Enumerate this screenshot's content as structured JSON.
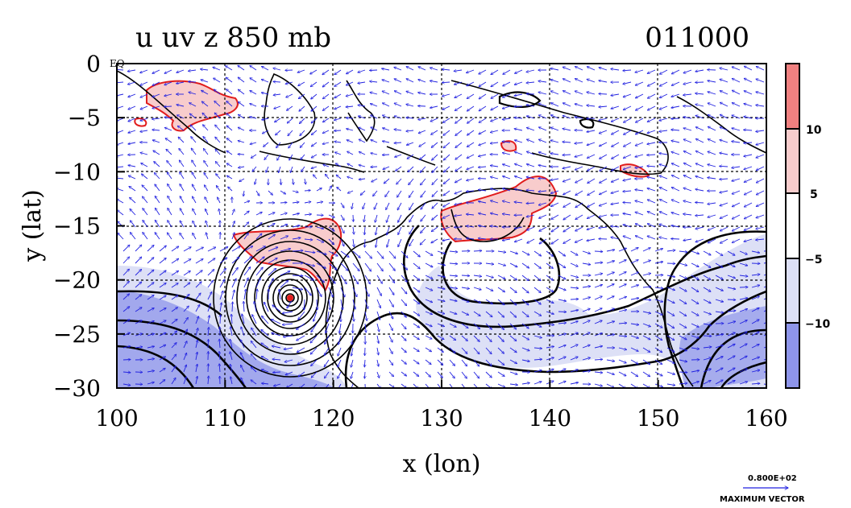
{
  "title": {
    "left": "u uv z 850 mb",
    "right": "011000"
  },
  "axes": {
    "xlabel": "x (lon)",
    "ylabel": "y (lat)",
    "xlim": [
      100,
      160
    ],
    "ylim": [
      -30,
      0
    ],
    "xticks": [
      {
        "value": 100,
        "label": "100"
      },
      {
        "value": 110,
        "label": "110"
      },
      {
        "value": 120,
        "label": "120"
      },
      {
        "value": 130,
        "label": "130"
      },
      {
        "value": 140,
        "label": "140"
      },
      {
        "value": 150,
        "label": "150"
      },
      {
        "value": 160,
        "label": "160"
      }
    ],
    "yticks": [
      {
        "value": 0,
        "label": "0"
      },
      {
        "value": -5,
        "label": "−5"
      },
      {
        "value": -10,
        "label": "−10"
      },
      {
        "value": -15,
        "label": "−15"
      },
      {
        "value": -20,
        "label": "−20"
      },
      {
        "value": -25,
        "label": "−25"
      },
      {
        "value": -30,
        "label": "−30"
      }
    ],
    "eq_label": "EQ",
    "grid": true
  },
  "colorbar": {
    "labels": [
      "10",
      "5",
      "−5",
      "−10"
    ],
    "bins": [
      {
        "name": "gt-10",
        "color": "#f08080"
      },
      {
        "name": "5-10",
        "color": "#f8cccc"
      },
      {
        "name": "-5-5",
        "color": "#ffffff"
      },
      {
        "name": "-10--5",
        "color": "#dde0f6"
      },
      {
        "name": "lt--10",
        "color": "#8e95ea"
      }
    ]
  },
  "vector_key": {
    "value": "0.800E+02",
    "label": "MAXIMUM VECTOR"
  },
  "colors": {
    "coast": "#000000",
    "contour": "#000000",
    "positive_contour": "#e11d1d",
    "vector": "#2020e0",
    "grid": "#000000"
  },
  "chart_data": {
    "type": "heatmap",
    "title": "u uv z 850 mb",
    "xlabel": "x (lon)",
    "ylabel": "y (lat)",
    "xlim": [
      100,
      160
    ],
    "ylim": [
      -30,
      0
    ],
    "shaded_variable": "u",
    "contour_variable": "z",
    "vector_variable": "uv",
    "level_mb": 850,
    "colorbar_levels": [
      -10,
      -5,
      5,
      10
    ],
    "features": [
      {
        "name": "cyclone",
        "lon": 115.8,
        "lat": -21.8
      },
      {
        "name": "positive u patch",
        "lon": 104,
        "lat": -4
      },
      {
        "name": "positive u patch",
        "lon": 115,
        "lat": -17
      },
      {
        "name": "positive u patch",
        "lon": 135,
        "lat": -14
      },
      {
        "name": "negative u band",
        "lon": 140,
        "lat": -24
      }
    ]
  }
}
